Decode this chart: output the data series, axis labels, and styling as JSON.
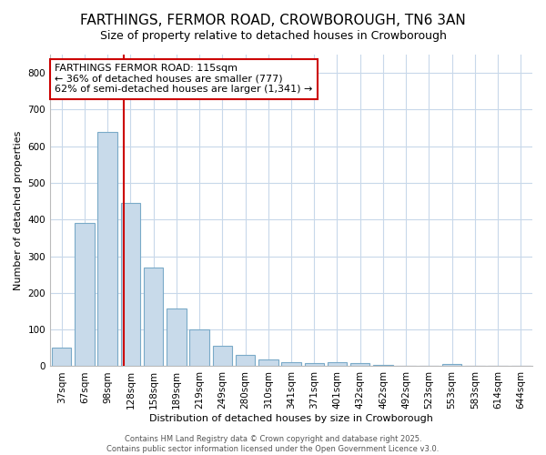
{
  "title": "FARTHINGS, FERMOR ROAD, CROWBOROUGH, TN6 3AN",
  "subtitle": "Size of property relative to detached houses in Crowborough",
  "xlabel": "Distribution of detached houses by size in Crowborough",
  "ylabel": "Number of detached properties",
  "bar_color": "#c8daea",
  "bar_edge_color": "#7aaac8",
  "background_color": "#ffffff",
  "grid_color": "#c8d8ea",
  "categories": [
    "37sqm",
    "67sqm",
    "98sqm",
    "128sqm",
    "158sqm",
    "189sqm",
    "219sqm",
    "249sqm",
    "280sqm",
    "310sqm",
    "341sqm",
    "371sqm",
    "401sqm",
    "432sqm",
    "462sqm",
    "492sqm",
    "523sqm",
    "553sqm",
    "583sqm",
    "614sqm",
    "644sqm"
  ],
  "values": [
    50,
    390,
    638,
    445,
    270,
    158,
    100,
    55,
    30,
    18,
    12,
    8,
    12,
    8,
    3,
    0,
    0,
    5,
    0,
    0,
    0
  ],
  "ylim": [
    0,
    850
  ],
  "yticks": [
    0,
    100,
    200,
    300,
    400,
    500,
    600,
    700,
    800
  ],
  "property_line_x": 2.72,
  "property_line_color": "#cc0000",
  "annotation_line1": "FARTHINGS FERMOR ROAD: 115sqm",
  "annotation_line2": "← 36% of detached houses are smaller (777)",
  "annotation_line3": "62% of semi-detached houses are larger (1,341) →",
  "annotation_box_color": "#ffffff",
  "annotation_box_edge_color": "#cc0000",
  "footer_line1": "Contains HM Land Registry data © Crown copyright and database right 2025.",
  "footer_line2": "Contains public sector information licensed under the Open Government Licence v3.0.",
  "title_fontsize": 11,
  "subtitle_fontsize": 9,
  "axis_label_fontsize": 8,
  "tick_fontsize": 7.5,
  "annotation_fontsize": 8,
  "footer_fontsize": 6
}
